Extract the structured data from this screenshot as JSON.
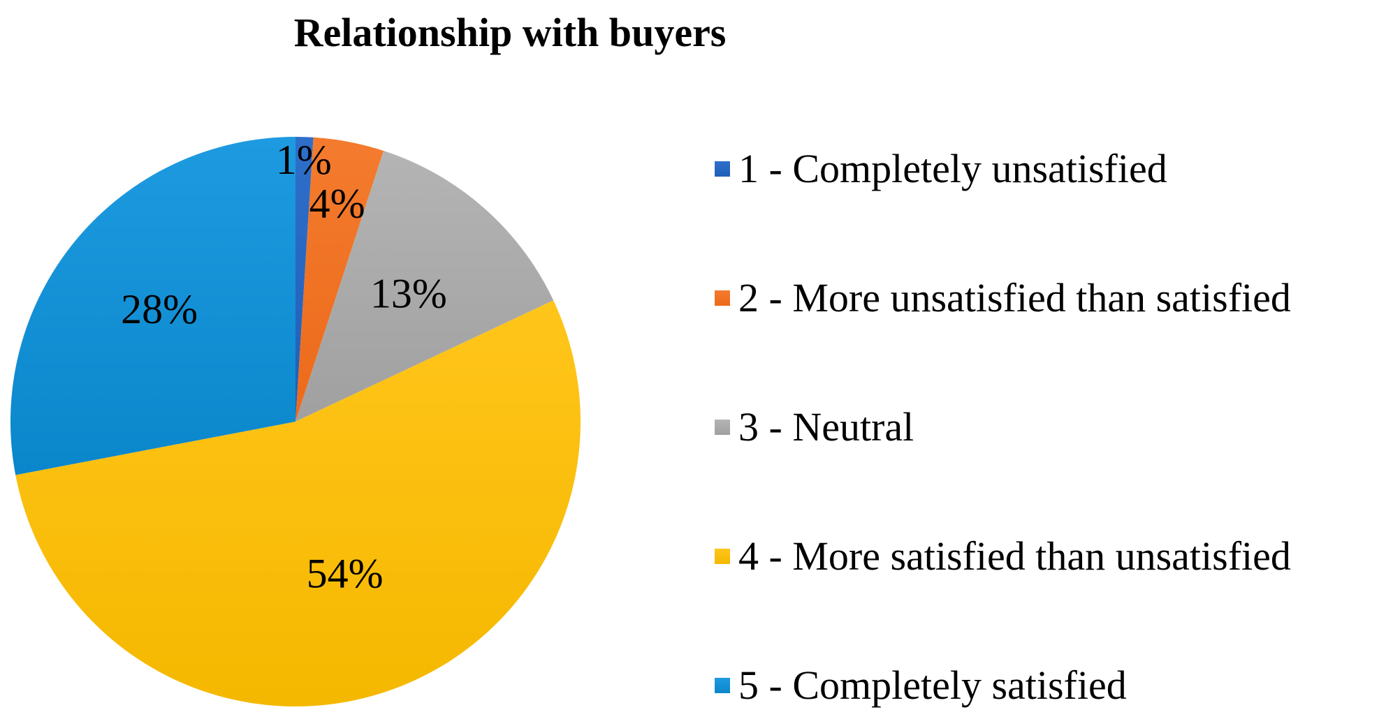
{
  "chart_data": {
    "type": "pie",
    "title": "Relationship with buyers",
    "legend_position": "right",
    "slices": [
      {
        "label": "1 - Completely unsatisfied",
        "value": 1,
        "display": "1%",
        "color": "#2F6FCB",
        "color_dark": "#1F5FB8"
      },
      {
        "label": "2 - More unsatisfied than satisfied",
        "value": 4,
        "display": "4%",
        "color": "#F47B2E",
        "color_dark": "#EC6A1A"
      },
      {
        "label": "3 - Neutral",
        "value": 13,
        "display": "13%",
        "color": "#B4B4B4",
        "color_dark": "#A0A0A0"
      },
      {
        "label": "4 - More satisfied than unsatisfied",
        "value": 54,
        "display": "54%",
        "color": "#FFC51A",
        "color_dark": "#F5B800"
      },
      {
        "label": "5 - Completely satisfied",
        "value": 28,
        "display": "28%",
        "color": "#1E9BE0",
        "color_dark": "#0A86CB"
      }
    ]
  }
}
